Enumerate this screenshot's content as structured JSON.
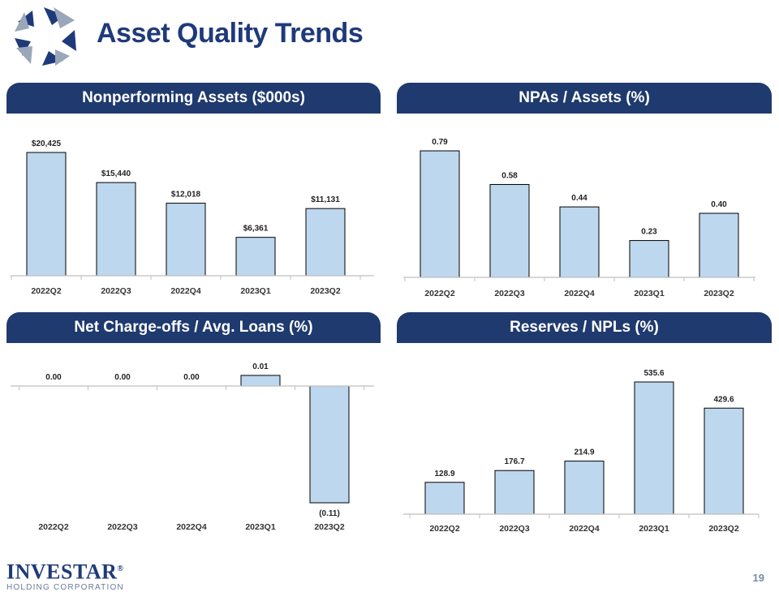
{
  "header": {
    "title": "Asset Quality Trends"
  },
  "footer": {
    "brand_name": "INVESTAR",
    "brand_mark": "®",
    "brand_sub": "HOLDING CORPORATION",
    "page_number": "19"
  },
  "colors": {
    "bar_fill": "#bdd7ee",
    "bar_stroke": "#000000",
    "header_bg": "#1f3a6e",
    "title": "#1f3a7a"
  },
  "chart_data": [
    {
      "type": "bar",
      "title": "Nonperforming Assets ($000s)",
      "categories": [
        "2022Q2",
        "2022Q3",
        "2022Q4",
        "2023Q1",
        "2023Q2"
      ],
      "values": [
        20425,
        15440,
        12018,
        6361,
        11131
      ],
      "labels": [
        "$20,425",
        "$15,440",
        "$12,018",
        "$6,361",
        "$11,131"
      ],
      "ylim": [
        0,
        20425
      ]
    },
    {
      "type": "bar",
      "title": "NPAs / Assets (%)",
      "categories": [
        "2022Q2",
        "2022Q3",
        "2022Q4",
        "2023Q1",
        "2023Q2"
      ],
      "values": [
        0.79,
        0.58,
        0.44,
        0.23,
        0.4
      ],
      "labels": [
        "0.79",
        "0.58",
        "0.44",
        "0.23",
        "0.40"
      ],
      "ylim": [
        0,
        0.79
      ]
    },
    {
      "type": "bar",
      "title": "Net Charge-offs / Avg. Loans (%)",
      "categories": [
        "2022Q2",
        "2022Q3",
        "2022Q4",
        "2023Q1",
        "2023Q2"
      ],
      "values": [
        0.0,
        0.0,
        0.0,
        0.01,
        -0.11
      ],
      "labels": [
        "0.00",
        "0.00",
        "0.00",
        "0.01",
        "(0.11)"
      ],
      "ylim": [
        -0.11,
        0.01
      ]
    },
    {
      "type": "bar",
      "title": "Reserves / NPLs (%)",
      "categories": [
        "2022Q2",
        "2022Q3",
        "2022Q4",
        "2023Q1",
        "2023Q2"
      ],
      "values": [
        128.9,
        176.7,
        214.9,
        535.6,
        429.6
      ],
      "labels": [
        "128.9",
        "176.7",
        "214.9",
        "535.6",
        "429.6"
      ],
      "ylim": [
        0,
        535.6
      ]
    }
  ]
}
